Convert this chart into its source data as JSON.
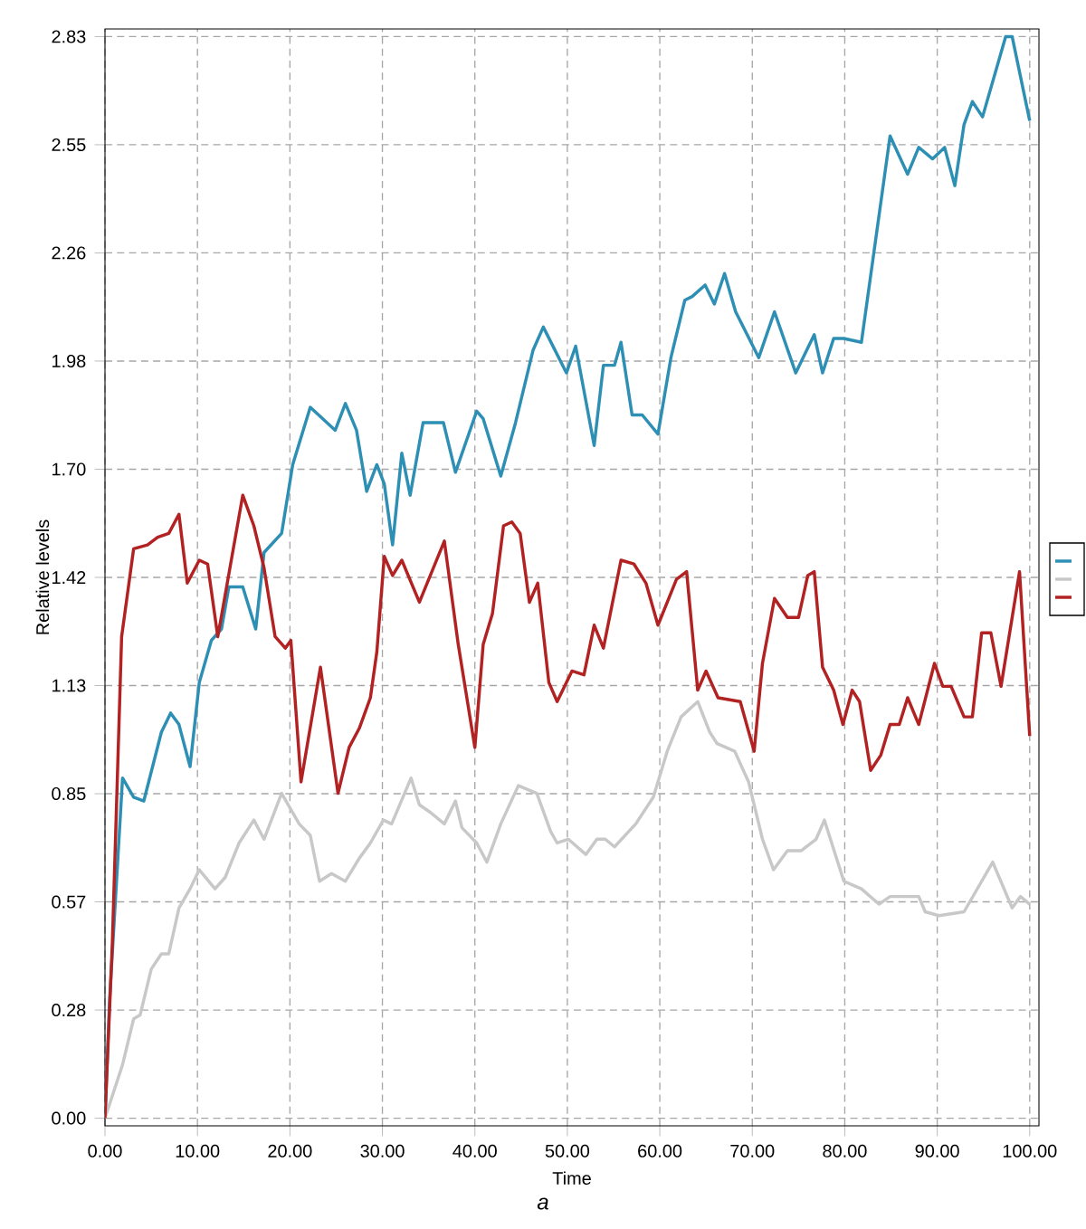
{
  "chart_data": {
    "type": "line",
    "xlabel": "Time",
    "ylabel": "Relative levels",
    "annotations": [
      "a"
    ],
    "xlim": [
      0,
      101
    ],
    "ylim": [
      -0.02,
      2.85
    ],
    "xticks": [
      {
        "value": 0,
        "label": "0.00"
      },
      {
        "value": 10,
        "label": "10.00"
      },
      {
        "value": 20,
        "label": "20.00"
      },
      {
        "value": 30,
        "label": "30.00"
      },
      {
        "value": 40,
        "label": "40.00"
      },
      {
        "value": 50,
        "label": "50.00"
      },
      {
        "value": 60,
        "label": "60.00"
      },
      {
        "value": 70,
        "label": "70.00"
      },
      {
        "value": 80,
        "label": "80.00"
      },
      {
        "value": 90,
        "label": "90.00"
      },
      {
        "value": 100,
        "label": "100.00"
      }
    ],
    "yticks": [
      {
        "value": 0,
        "label": "0.00"
      },
      {
        "value": 0.283,
        "label": "0.28"
      },
      {
        "value": 0.566,
        "label": "0.57"
      },
      {
        "value": 0.849,
        "label": "0.85"
      },
      {
        "value": 1.132,
        "label": "1.13"
      },
      {
        "value": 1.415,
        "label": "1.42"
      },
      {
        "value": 1.698,
        "label": "1.70"
      },
      {
        "value": 1.981,
        "label": "1.98"
      },
      {
        "value": 2.264,
        "label": "2.26"
      },
      {
        "value": 2.547,
        "label": "2.55"
      },
      {
        "value": 2.83,
        "label": "2.83"
      }
    ],
    "grid": true,
    "marker": "none",
    "line_style": "solid",
    "series": [
      {
        "color": "#2e8fb4",
        "x": [
          0,
          0.5,
          1.9,
          3.1,
          4.2,
          6.1,
          7.1,
          8.0,
          9.2,
          10.2,
          11.5,
          12.6,
          13.4,
          14.9,
          16.3,
          17.2,
          19.1,
          20.3,
          22.2,
          24.9,
          26.0,
          27.2,
          28.3,
          29.4,
          30.2,
          31.1,
          32.1,
          33.0,
          34.4,
          36.6,
          37.9,
          40.2,
          40.9,
          42.8,
          44.4,
          46.3,
          47.4,
          49.9,
          50.9,
          52.9,
          53.9,
          55.1,
          55.8,
          57.0,
          58.1,
          59.8,
          61.2,
          62.7,
          63.5,
          64.9,
          65.9,
          67.0,
          68.2,
          70.7,
          72.4,
          74.7,
          76.7,
          77.6,
          78.8,
          79.9,
          81.8,
          84.9,
          86.8,
          88.0,
          89.5,
          90.8,
          91.9,
          92.9,
          93.8,
          94.9,
          97.4,
          98.1,
          100.0
        ],
        "values": [
          0,
          0.31,
          0.89,
          0.84,
          0.83,
          1.01,
          1.06,
          1.03,
          0.92,
          1.14,
          1.25,
          1.28,
          1.39,
          1.39,
          1.28,
          1.48,
          1.53,
          1.71,
          1.86,
          1.8,
          1.87,
          1.8,
          1.64,
          1.71,
          1.66,
          1.5,
          1.74,
          1.63,
          1.82,
          1.82,
          1.69,
          1.85,
          1.83,
          1.68,
          1.82,
          2.01,
          2.07,
          1.95,
          2.02,
          1.76,
          1.97,
          1.97,
          2.03,
          1.84,
          1.84,
          1.79,
          1.99,
          2.14,
          2.15,
          2.18,
          2.13,
          2.21,
          2.11,
          1.99,
          2.11,
          1.95,
          2.05,
          1.95,
          2.04,
          2.04,
          2.03,
          2.57,
          2.47,
          2.54,
          2.51,
          2.54,
          2.44,
          2.6,
          2.66,
          2.62,
          2.83,
          2.83,
          2.61
        ]
      },
      {
        "color": "#c8c8c8",
        "x": [
          0,
          1.9,
          3.1,
          3.8,
          5.0,
          6.1,
          6.9,
          8.0,
          9.2,
          10.2,
          11.9,
          13.0,
          14.5,
          16.1,
          17.2,
          19.1,
          21.0,
          22.2,
          23.2,
          24.5,
          26.0,
          27.5,
          28.7,
          30.1,
          31.0,
          33.1,
          34.0,
          35.2,
          36.7,
          37.9,
          38.6,
          40.2,
          41.3,
          42.8,
          44.7,
          46.7,
          48.2,
          48.9,
          50.1,
          52.0,
          53.2,
          54.1,
          55.1,
          57.4,
          59.3,
          60.8,
          62.3,
          64.1,
          65.4,
          66.2,
          68.1,
          69.6,
          71.1,
          72.3,
          73.8,
          75.3,
          76.9,
          77.8,
          79.9,
          81.8,
          83.7,
          84.9,
          88.0,
          88.7,
          90.2,
          92.9,
          96.0,
          98.1,
          99.0,
          100.0
        ],
        "values": [
          0,
          0.14,
          0.26,
          0.27,
          0.39,
          0.43,
          0.43,
          0.55,
          0.6,
          0.65,
          0.6,
          0.63,
          0.72,
          0.78,
          0.73,
          0.85,
          0.77,
          0.74,
          0.62,
          0.64,
          0.62,
          0.68,
          0.72,
          0.78,
          0.77,
          0.89,
          0.82,
          0.8,
          0.77,
          0.83,
          0.76,
          0.72,
          0.67,
          0.77,
          0.87,
          0.85,
          0.75,
          0.72,
          0.73,
          0.69,
          0.73,
          0.73,
          0.71,
          0.77,
          0.84,
          0.96,
          1.05,
          1.09,
          1.01,
          0.98,
          0.96,
          0.88,
          0.73,
          0.65,
          0.7,
          0.7,
          0.73,
          0.78,
          0.62,
          0.6,
          0.56,
          0.58,
          0.58,
          0.54,
          0.53,
          0.54,
          0.67,
          0.55,
          0.58,
          0.56
        ]
      },
      {
        "color": "#b22222",
        "x": [
          0,
          0.8,
          1.8,
          3.1,
          4.6,
          5.7,
          6.9,
          8.0,
          8.9,
          10.2,
          11.1,
          12.2,
          14.9,
          16.1,
          17.2,
          18.4,
          19.5,
          20.1,
          21.2,
          23.3,
          25.2,
          26.4,
          27.5,
          28.7,
          29.4,
          30.2,
          31.1,
          32.1,
          34.0,
          36.7,
          38.2,
          40.0,
          40.9,
          41.9,
          43.1,
          44.0,
          44.9,
          45.9,
          46.8,
          48.0,
          48.9,
          50.5,
          51.8,
          52.9,
          53.9,
          55.8,
          57.2,
          58.5,
          59.8,
          61.8,
          62.9,
          64.1,
          65.0,
          66.3,
          68.7,
          70.2,
          71.1,
          72.4,
          73.8,
          75.0,
          76.0,
          76.7,
          77.6,
          78.8,
          79.8,
          80.8,
          81.6,
          82.8,
          83.9,
          84.9,
          85.9,
          86.8,
          88.0,
          89.7,
          90.6,
          91.5,
          92.9,
          93.8,
          94.8,
          95.8,
          96.9,
          98.9,
          100.0
        ],
        "values": [
          0,
          0.46,
          1.26,
          1.49,
          1.5,
          1.52,
          1.53,
          1.58,
          1.4,
          1.46,
          1.45,
          1.26,
          1.63,
          1.55,
          1.44,
          1.26,
          1.23,
          1.25,
          0.88,
          1.18,
          0.85,
          0.97,
          1.02,
          1.1,
          1.22,
          1.47,
          1.42,
          1.46,
          1.35,
          1.51,
          1.24,
          0.97,
          1.24,
          1.32,
          1.55,
          1.56,
          1.53,
          1.35,
          1.4,
          1.14,
          1.09,
          1.17,
          1.16,
          1.29,
          1.23,
          1.46,
          1.45,
          1.4,
          1.29,
          1.41,
          1.43,
          1.12,
          1.17,
          1.1,
          1.09,
          0.96,
          1.19,
          1.36,
          1.31,
          1.31,
          1.42,
          1.43,
          1.18,
          1.12,
          1.03,
          1.12,
          1.09,
          0.91,
          0.95,
          1.03,
          1.03,
          1.1,
          1.03,
          1.19,
          1.13,
          1.13,
          1.05,
          1.05,
          1.27,
          1.27,
          1.13,
          1.43,
          1.0
        ]
      }
    ]
  }
}
